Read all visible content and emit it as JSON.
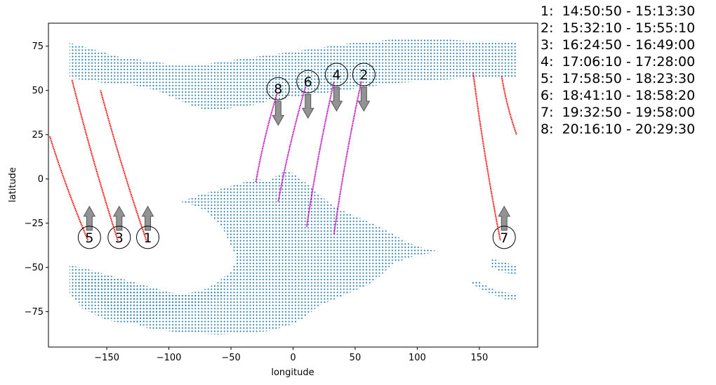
{
  "chart_data": {
    "type": "scatter",
    "xlabel": "longitude",
    "ylabel": "latitude",
    "xlim": [
      -197,
      197
    ],
    "ylim": [
      -95,
      88
    ],
    "xticks": [
      -150,
      -100,
      -50,
      0,
      50,
      100,
      150
    ],
    "yticks": [
      -75,
      -50,
      -25,
      0,
      25,
      50,
      75
    ],
    "colors": {
      "grid_points": "#1f77b4",
      "track_red": "#ff0000",
      "track_magenta": "#c000c0",
      "arrow": "#808080"
    },
    "grid_regions": [
      {
        "region": "north",
        "points": [
          [
            -180,
            77
          ],
          [
            -170,
            75
          ],
          [
            -160,
            73
          ],
          [
            -150,
            71
          ],
          [
            -140,
            69
          ],
          [
            -130,
            68
          ],
          [
            -120,
            67
          ],
          [
            -110,
            66
          ],
          [
            -100,
            65
          ],
          [
            -90,
            64
          ],
          [
            -80,
            64
          ],
          [
            -70,
            65
          ],
          [
            -60,
            66
          ],
          [
            -50,
            67
          ],
          [
            -40,
            68
          ],
          [
            -30,
            69
          ],
          [
            -20,
            70
          ],
          [
            -10,
            71
          ],
          [
            0,
            72
          ],
          [
            10,
            73
          ],
          [
            20,
            74
          ],
          [
            30,
            75
          ],
          [
            40,
            76
          ],
          [
            50,
            77
          ],
          [
            60,
            77
          ],
          [
            80,
            79
          ],
          [
            100,
            79
          ],
          [
            120,
            79
          ],
          [
            140,
            78
          ],
          [
            160,
            78
          ],
          [
            180,
            77
          ],
          [
            180,
            57
          ],
          [
            160,
            57
          ],
          [
            140,
            57
          ],
          [
            120,
            56
          ],
          [
            100,
            55
          ],
          [
            80,
            54
          ],
          [
            60,
            52
          ],
          [
            50,
            51
          ],
          [
            40,
            50
          ],
          [
            30,
            49
          ],
          [
            20,
            48
          ],
          [
            10,
            47
          ],
          [
            0,
            46
          ],
          [
            -10,
            45
          ],
          [
            -20,
            44
          ],
          [
            -30,
            42
          ],
          [
            -40,
            41
          ],
          [
            -50,
            40
          ],
          [
            -60,
            39
          ],
          [
            -70,
            39
          ],
          [
            -80,
            41
          ],
          [
            -90,
            44
          ],
          [
            -100,
            47
          ],
          [
            -110,
            50
          ],
          [
            -120,
            52
          ],
          [
            -130,
            53
          ],
          [
            -140,
            54
          ],
          [
            -150,
            54
          ],
          [
            -160,
            55
          ],
          [
            -170,
            56
          ],
          [
            -180,
            57
          ]
        ]
      },
      {
        "region": "middle",
        "points": [
          [
            -90,
            -13
          ],
          [
            -80,
            -10
          ],
          [
            -60,
            -6
          ],
          [
            -50,
            -4
          ],
          [
            -40,
            -2
          ],
          [
            -30,
            0
          ],
          [
            -20,
            -1
          ],
          [
            -10,
            3
          ],
          [
            -5,
            5
          ],
          [
            0,
            3
          ],
          [
            10,
            -2
          ],
          [
            20,
            -8
          ],
          [
            30,
            -14
          ],
          [
            40,
            -18
          ],
          [
            50,
            -21
          ],
          [
            60,
            -24
          ],
          [
            70,
            -27
          ],
          [
            80,
            -31
          ],
          [
            90,
            -35
          ],
          [
            100,
            -38
          ],
          [
            110,
            -40
          ],
          [
            120,
            -41
          ],
          [
            100,
            -43
          ],
          [
            80,
            -48
          ],
          [
            70,
            -55
          ],
          [
            60,
            -60
          ],
          [
            40,
            -66
          ],
          [
            20,
            -72
          ],
          [
            10,
            -78
          ],
          [
            0,
            -82
          ],
          [
            -20,
            -86
          ],
          [
            -40,
            -87
          ],
          [
            -60,
            -88
          ],
          [
            -90,
            -87
          ],
          [
            -100,
            -86
          ],
          [
            -120,
            -84
          ],
          [
            -130,
            -80
          ],
          [
            -140,
            -77
          ],
          [
            -150,
            -73
          ],
          [
            -160,
            -68
          ],
          [
            -170,
            -64
          ],
          [
            -175,
            -60
          ],
          [
            -170,
            -56
          ],
          [
            -160,
            -55
          ],
          [
            -150,
            -56
          ],
          [
            -140,
            -58
          ],
          [
            -130,
            -60
          ],
          [
            -120,
            -62
          ],
          [
            -110,
            -64
          ],
          [
            -100,
            -65
          ],
          [
            -90,
            -65
          ],
          [
            -80,
            -64
          ],
          [
            -70,
            -62
          ],
          [
            -60,
            -58
          ],
          [
            -50,
            -52
          ],
          [
            -45,
            -45
          ],
          [
            -50,
            -38
          ],
          [
            -55,
            -30
          ],
          [
            -60,
            -25
          ],
          [
            -70,
            -18
          ],
          [
            -80,
            -15
          ]
        ]
      },
      {
        "region": "south-left",
        "points": [
          [
            -180,
            -49
          ],
          [
            -170,
            -50
          ],
          [
            -160,
            -52
          ],
          [
            -150,
            -54
          ],
          [
            -140,
            -56
          ],
          [
            -130,
            -58
          ],
          [
            -120,
            -60
          ],
          [
            -110,
            -62
          ],
          [
            -100,
            -64
          ],
          [
            -90,
            -65
          ],
          [
            -80,
            -65
          ],
          [
            -70,
            -64
          ],
          [
            -60,
            -62
          ],
          [
            -55,
            -66
          ],
          [
            -70,
            -70
          ],
          [
            -90,
            -75
          ],
          [
            -110,
            -79
          ],
          [
            -130,
            -82
          ],
          [
            -150,
            -80
          ],
          [
            -170,
            -73
          ],
          [
            -180,
            -65
          ]
        ]
      },
      {
        "region": "south-right",
        "points": [
          [
            160,
            -45
          ],
          [
            170,
            -47
          ],
          [
            180,
            -49
          ],
          [
            180,
            -54
          ],
          [
            170,
            -53
          ],
          [
            160,
            -50
          ]
        ]
      },
      {
        "region": "far-south-right",
        "points": [
          [
            140,
            -57
          ],
          [
            150,
            -58
          ],
          [
            160,
            -62
          ],
          [
            170,
            -64
          ],
          [
            180,
            -65
          ],
          [
            180,
            -68
          ],
          [
            170,
            -68
          ],
          [
            160,
            -65
          ],
          [
            150,
            -62
          ]
        ]
      }
    ],
    "tracks": [
      {
        "id": "1",
        "color": "red",
        "start": [
          -155,
          50
        ],
        "end": [
          -118,
          -35
        ],
        "direction": "up"
      },
      {
        "id": "2",
        "color": "magenta",
        "start": [
          55,
          55
        ],
        "end": [
          33,
          -31
        ],
        "direction": "down"
      },
      {
        "id": "3",
        "color": "red",
        "start": [
          -178,
          56
        ],
        "end": [
          -141,
          -35
        ],
        "direction": "up"
      },
      {
        "id": "4",
        "color": "magenta",
        "start": [
          33,
          55
        ],
        "end": [
          11,
          -27
        ],
        "direction": "down"
      },
      {
        "id": "5",
        "color": "red",
        "start": [
          -198,
          24
        ],
        "end": [
          -165,
          -35
        ],
        "direction": "up"
      },
      {
        "id": "6",
        "color": "magenta",
        "start": [
          10,
          52
        ],
        "end": [
          -12,
          -13
        ],
        "direction": "down"
      },
      {
        "id": "7",
        "color": "red",
        "start": [
          145,
          60
        ],
        "end": [
          167,
          -35
        ],
        "direction": "up",
        "extra": {
          "start": [
            168,
            58
          ],
          "end": [
            180,
            25
          ]
        }
      },
      {
        "id": "8",
        "color": "magenta",
        "start": [
          -13,
          48
        ],
        "end": [
          -30,
          -2
        ],
        "direction": "down"
      }
    ],
    "markers": [
      {
        "label": "1",
        "x": -117,
        "y": -33
      },
      {
        "label": "2",
        "x": 57,
        "y": 59
      },
      {
        "label": "3",
        "x": -140,
        "y": -33
      },
      {
        "label": "4",
        "x": 35,
        "y": 59
      },
      {
        "label": "5",
        "x": -164,
        "y": -33
      },
      {
        "label": "6",
        "x": 12,
        "y": 55
      },
      {
        "label": "7",
        "x": 170,
        "y": -33
      },
      {
        "label": "8",
        "x": -12,
        "y": 51
      }
    ],
    "legend": [
      "1:  14:50:50 - 15:13:30",
      "2:  15:32:10 - 15:55:10",
      "3:  16:24:50 - 16:49:00",
      "4:  17:06:10 - 17:28:00",
      "5:  17:58:50 - 18:23:30",
      "6:  18:41:10 - 18:58:20",
      "7:  19:32:50 - 19:58:00",
      "8:  20:16:10 - 20:29:30"
    ],
    "legend_placement": "outside right"
  }
}
